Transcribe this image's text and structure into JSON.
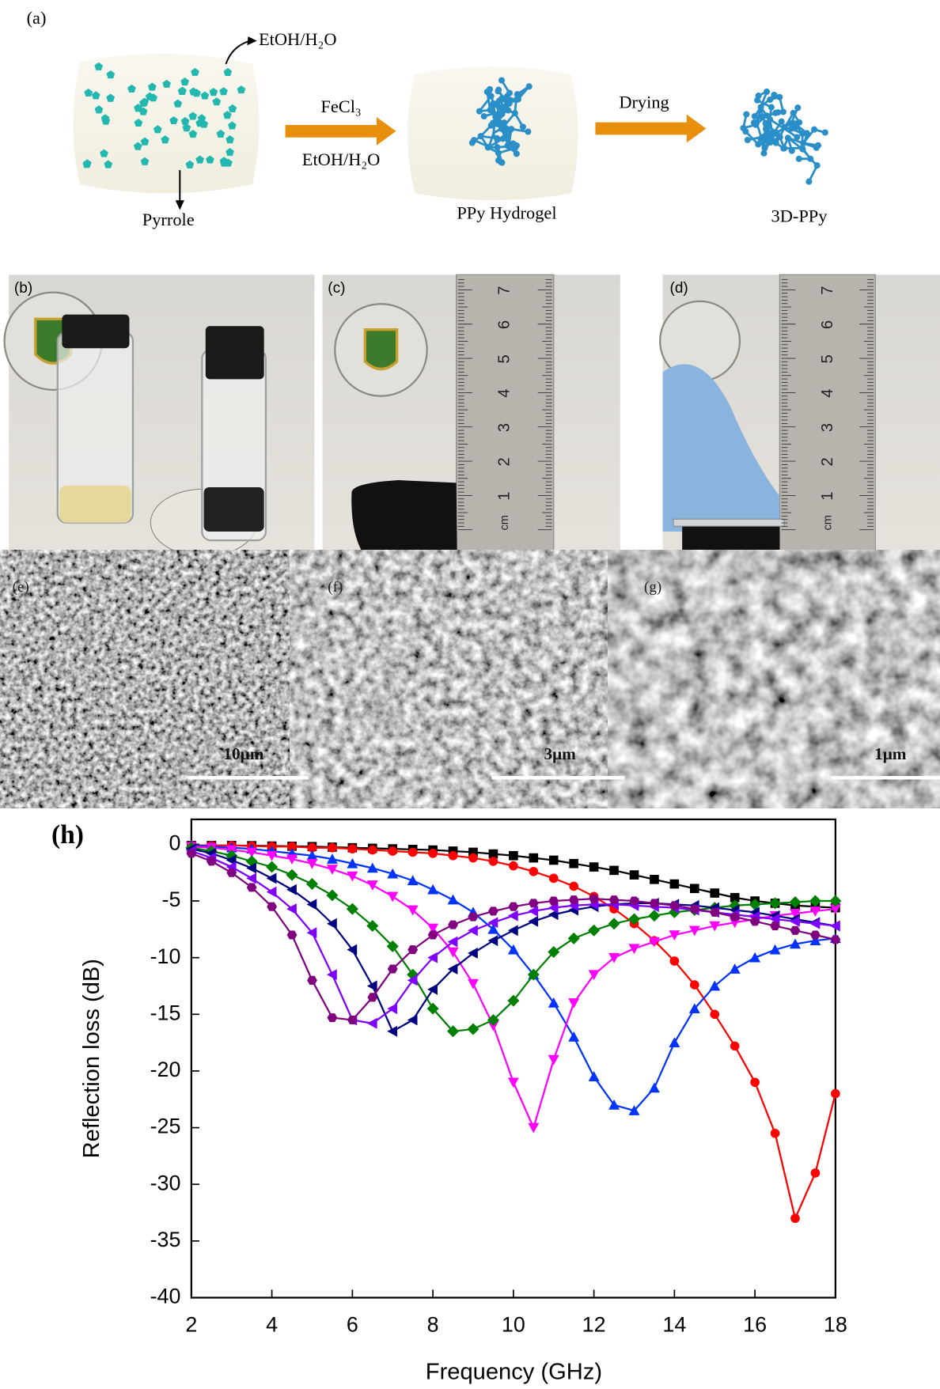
{
  "panel_a": {
    "label": "(a)",
    "solvent_top": "EtOH/H₂O",
    "monomer": "Pyrrole",
    "oxidant": "FeCl₃",
    "solvent_arrow": "EtOH/H₂O",
    "step2": "Drying",
    "hydrogel": "PPy Hydrogel",
    "product": "3D-PPy"
  },
  "photos": [
    {
      "label": "(b)"
    },
    {
      "label": "(c)",
      "ruler": {
        "unit": "cm",
        "numbers": [
          1,
          2,
          3,
          4,
          5,
          6,
          7
        ]
      }
    },
    {
      "label": "(d)",
      "ruler": {
        "unit": "cm",
        "numbers": [
          1,
          2,
          3,
          4,
          5,
          6,
          7
        ]
      }
    }
  ],
  "sem": [
    {
      "label": "(e)",
      "scale_bar": "10μm"
    },
    {
      "label": "(f)",
      "scale_bar": "3μm"
    },
    {
      "label": "(g)",
      "scale_bar": "1μm"
    }
  ],
  "chart_data": {
    "type": "line",
    "label": "(h)",
    "x_label": "Frequency (GHz)",
    "y_label": "Reflection loss (dB)",
    "xlim": [
      2,
      18
    ],
    "ylim": [
      -40,
      2.2
    ],
    "xticks": [
      2,
      4,
      6,
      8,
      10,
      12,
      14,
      16,
      18
    ],
    "yticks": [
      -40,
      -35,
      -30,
      -25,
      -20,
      -15,
      -10,
      -5,
      0
    ],
    "x": [
      2,
      2.5,
      3,
      3.5,
      4,
      4.5,
      5,
      5.5,
      6,
      6.5,
      7,
      7.5,
      8,
      8.5,
      9,
      9.5,
      10,
      10.5,
      11,
      11.5,
      12,
      12.5,
      13,
      13.5,
      14,
      14.5,
      15,
      15.5,
      16,
      16.5,
      17,
      17.5,
      18
    ],
    "series": [
      {
        "color": "#000000",
        "marker": "square",
        "values": [
          -0.1,
          -0.1,
          -0.1,
          -0.12,
          -0.15,
          -0.17,
          -0.2,
          -0.25,
          -0.3,
          -0.35,
          -0.4,
          -0.45,
          -0.5,
          -0.6,
          -0.7,
          -0.85,
          -1,
          -1.2,
          -1.4,
          -1.7,
          -2,
          -2.3,
          -2.7,
          -3.1,
          -3.5,
          -3.9,
          -4.3,
          -4.7,
          -5,
          -5.2,
          -5.4,
          -5.5,
          -5.6
        ]
      },
      {
        "color": "#ff0000",
        "marker": "circle",
        "values": [
          -0.1,
          -0.1,
          -0.1,
          -0.15,
          -0.2,
          -0.2,
          -0.3,
          -0.3,
          -0.4,
          -0.5,
          -0.6,
          -0.7,
          -0.8,
          -1,
          -1.2,
          -1.5,
          -1.9,
          -2.4,
          -3,
          -3.7,
          -4.6,
          -5.7,
          -7,
          -8.5,
          -10.3,
          -12.4,
          -15,
          -17.8,
          -21,
          -25.5,
          -33,
          -29,
          -22
        ]
      },
      {
        "color": "#0033ff",
        "marker": "triangle-up",
        "values": [
          -0.1,
          -0.2,
          -0.3,
          -0.4,
          -0.6,
          -0.8,
          -1,
          -1.3,
          -1.7,
          -2.1,
          -2.6,
          -3.2,
          -4,
          -4.9,
          -6,
          -7.5,
          -9.3,
          -11.5,
          -14,
          -17,
          -20.5,
          -23,
          -23.5,
          -21.5,
          -17.5,
          -14.5,
          -12.5,
          -11,
          -10,
          -9.3,
          -8.8,
          -8.5,
          -8.3
        ]
      },
      {
        "color": "#ff00ff",
        "marker": "triangle-down",
        "values": [
          -0.2,
          -0.3,
          -0.5,
          -0.7,
          -1,
          -1.3,
          -1.7,
          -2.2,
          -2.8,
          -3.6,
          -4.6,
          -5.8,
          -7.4,
          -9.5,
          -12.3,
          -16,
          -21,
          -25,
          -19,
          -14,
          -11.5,
          -10,
          -9.2,
          -8.6,
          -8,
          -7.6,
          -7.2,
          -6.9,
          -6.6,
          -6.3,
          -6.1,
          -5.9,
          -5.7
        ]
      },
      {
        "color": "#008000",
        "marker": "diamond",
        "values": [
          -0.3,
          -0.6,
          -1,
          -1.5,
          -2,
          -2.7,
          -3.5,
          -4.5,
          -5.7,
          -7.2,
          -9,
          -11.5,
          -14.5,
          -16.5,
          -16.3,
          -15.5,
          -13.8,
          -11.5,
          -9.5,
          -8.3,
          -7.6,
          -7,
          -6.6,
          -6.3,
          -6,
          -5.8,
          -5.6,
          -5.4,
          -5.3,
          -5.2,
          -5.1,
          -5,
          -5
        ]
      },
      {
        "color": "#000080",
        "marker": "triangle-left",
        "values": [
          -0.4,
          -0.8,
          -1.4,
          -2.1,
          -3,
          -4,
          -5.3,
          -7,
          -9.3,
          -12.5,
          -16.5,
          -15.5,
          -12.8,
          -11,
          -9.6,
          -8.5,
          -7.6,
          -6.8,
          -6.2,
          -5.8,
          -5.5,
          -5.3,
          -5.2,
          -5.2,
          -5.3,
          -5.4,
          -5.6,
          -5.8,
          -6,
          -6.3,
          -6.6,
          -6.9,
          -7.2
        ]
      },
      {
        "color": "#8000ff",
        "marker": "triangle-left",
        "values": [
          -0.6,
          -1.2,
          -2,
          -3,
          -4.2,
          -5.7,
          -7.8,
          -11.5,
          -15.5,
          -15.8,
          -14.5,
          -12,
          -10,
          -8.6,
          -7.6,
          -6.9,
          -6.3,
          -5.9,
          -5.6,
          -5.4,
          -5.3,
          -5.3,
          -5.4,
          -5.5,
          -5.6,
          -5.8,
          -6,
          -6.2,
          -6.4,
          -6.6,
          -6.8,
          -7,
          -7.2
        ]
      },
      {
        "color": "#800080",
        "marker": "hexagon",
        "values": [
          -0.8,
          -1.5,
          -2.5,
          -3.8,
          -5.5,
          -8,
          -12,
          -15.3,
          -15.5,
          -13.5,
          -11,
          -9.3,
          -8,
          -7.1,
          -6.4,
          -5.9,
          -5.5,
          -5.2,
          -5,
          -4.9,
          -4.8,
          -4.9,
          -5,
          -5.2,
          -5.4,
          -5.7,
          -6,
          -6.4,
          -6.8,
          -7.2,
          -7.6,
          -8,
          -8.4
        ]
      }
    ]
  }
}
